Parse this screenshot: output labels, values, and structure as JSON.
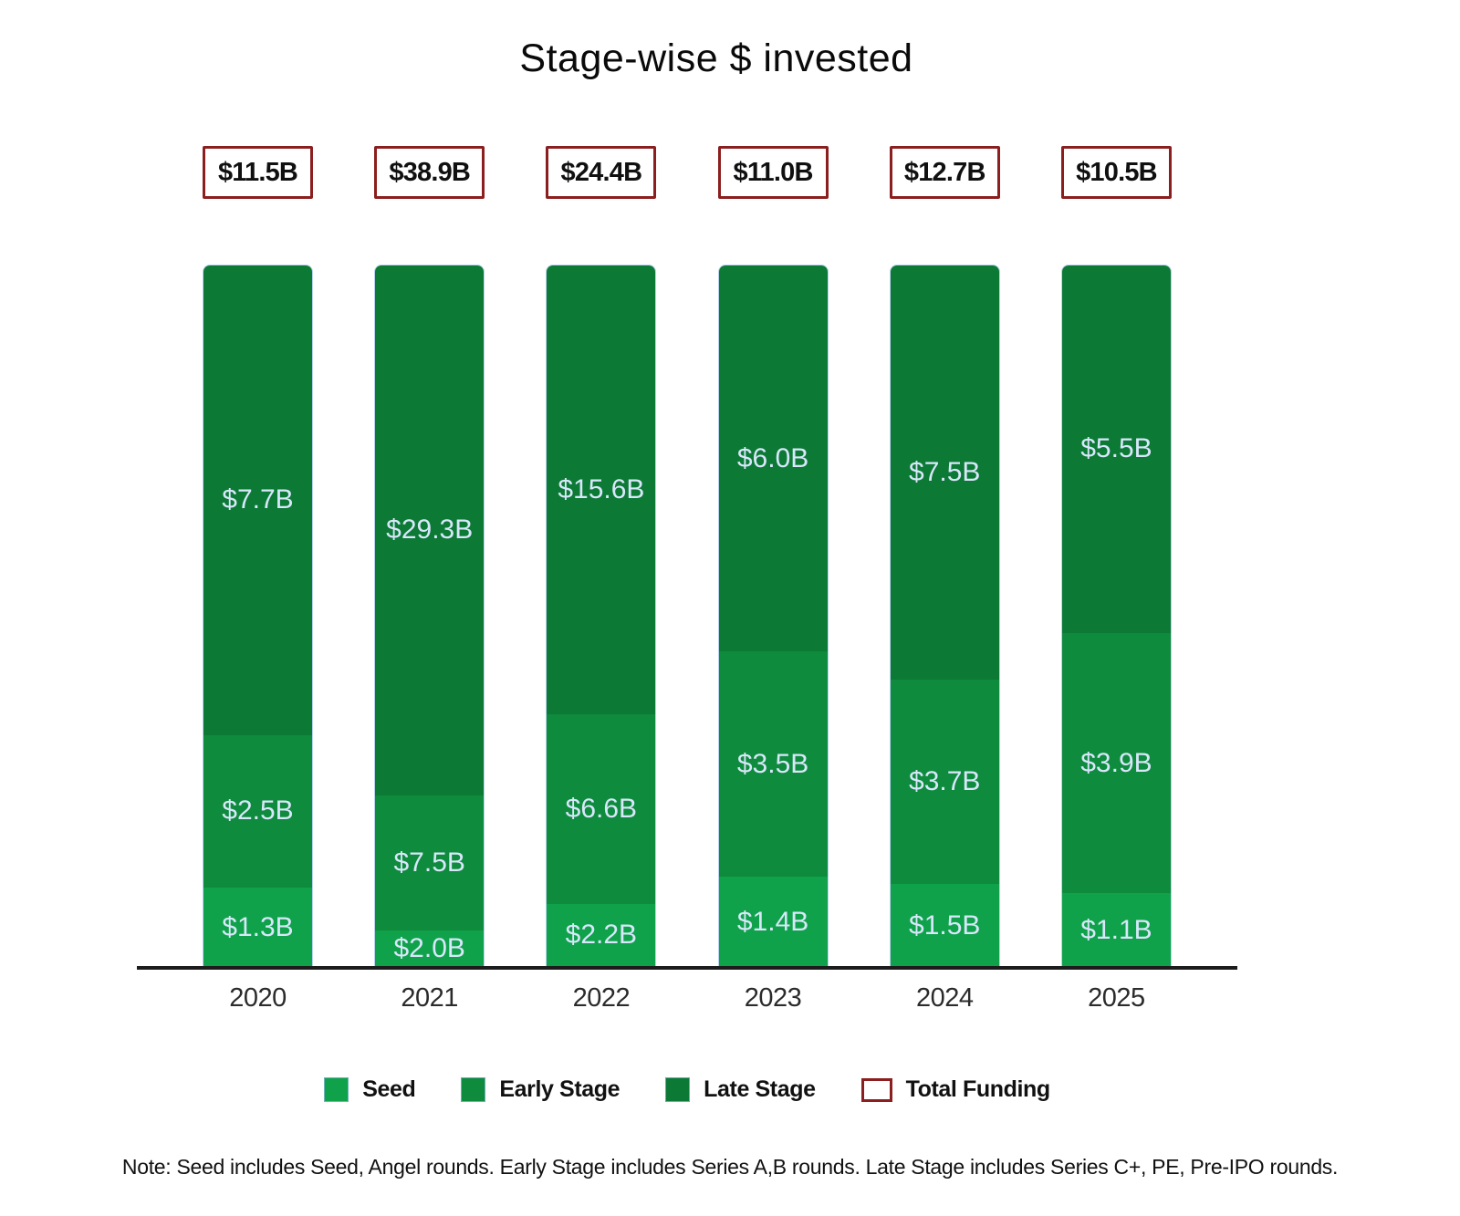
{
  "page": {
    "title": "Stage-wise $ invested"
  },
  "chart_data": {
    "type": "bar",
    "subtype": "stacked-percent-column",
    "title": "Stage-wise $ invested",
    "categories": [
      "2020",
      "2021",
      "2022",
      "2023",
      "2024",
      "2025"
    ],
    "series": [
      {
        "name": "Seed",
        "color": "#0FA24B",
        "values": [
          1.3,
          2.0,
          2.2,
          1.4,
          1.5,
          1.1
        ],
        "labels": [
          "$1.3B",
          "$2.0B",
          "$2.2B",
          "$1.4B",
          "$1.5B",
          "$1.1B"
        ]
      },
      {
        "name": "Early Stage",
        "color": "#0E8B3D",
        "values": [
          2.5,
          7.5,
          6.6,
          3.5,
          3.7,
          3.9
        ],
        "labels": [
          "$2.5B",
          "$7.5B",
          "$6.6B",
          "$3.5B",
          "$3.7B",
          "$3.9B"
        ]
      },
      {
        "name": "Late Stage",
        "color": "#0C7935",
        "values": [
          7.7,
          29.3,
          15.6,
          6.0,
          7.5,
          5.5
        ],
        "labels": [
          "$7.7B",
          "$29.3B",
          "$15.6B",
          "$6.0B",
          "$7.5B",
          "$5.5B"
        ]
      }
    ],
    "totals": {
      "name": "Total Funding",
      "values": [
        11.5,
        38.9,
        24.4,
        11.0,
        12.7,
        10.5
      ],
      "labels": [
        "$11.5B",
        "$38.9B",
        "$24.4B",
        "$11.0B",
        "$12.7B",
        "$10.5B"
      ],
      "box_border_color": "#8B1E1E"
    },
    "value_label_color": "#D8E7FA",
    "axis_line_color": "#1C1C1C",
    "gridlines": false,
    "legend_position": "bottom"
  },
  "legend": {
    "items": [
      {
        "label": "Seed",
        "swatch": "fill",
        "color": "#0FA24B"
      },
      {
        "label": "Early Stage",
        "swatch": "fill",
        "color": "#0E8B3D"
      },
      {
        "label": "Late Stage",
        "swatch": "fill",
        "color": "#0C7935"
      },
      {
        "label": "Total Funding",
        "swatch": "outline",
        "color": "#8B1E1E"
      }
    ]
  },
  "note": "Note: Seed includes Seed, Angel rounds. Early Stage includes Series A,B rounds. Late Stage includes Series C+, PE, Pre-IPO rounds."
}
